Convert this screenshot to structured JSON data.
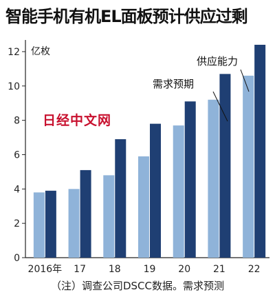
{
  "title": "智能手机有机EL面板预计供应过剩",
  "watermark": "日经中文网",
  "note": "（注）调查公司DSCC数据。需求预测",
  "colors": {
    "demand": "#8fb3d9",
    "supply": "#1f3f73",
    "axis": "#222222"
  },
  "chart_data": {
    "type": "bar",
    "title": "智能手机有机EL面板预计供应过剩",
    "ylabel": "亿枚",
    "xlabel": "",
    "ylim": [
      0,
      12.6
    ],
    "yticks": [
      0,
      2,
      4,
      6,
      8,
      10,
      12
    ],
    "categories": [
      "2016年",
      "17",
      "18",
      "19",
      "20",
      "21",
      "22"
    ],
    "series": [
      {
        "name": "需求预期",
        "color": "#8fb3d9",
        "values": [
          3.8,
          4.0,
          4.8,
          5.9,
          7.7,
          9.2,
          10.6
        ]
      },
      {
        "name": "供应能力",
        "color": "#1f3f73",
        "values": [
          3.9,
          5.1,
          6.9,
          7.8,
          9.1,
          10.7,
          12.4
        ]
      }
    ],
    "grid": false,
    "legend": "annotations near last bars"
  }
}
